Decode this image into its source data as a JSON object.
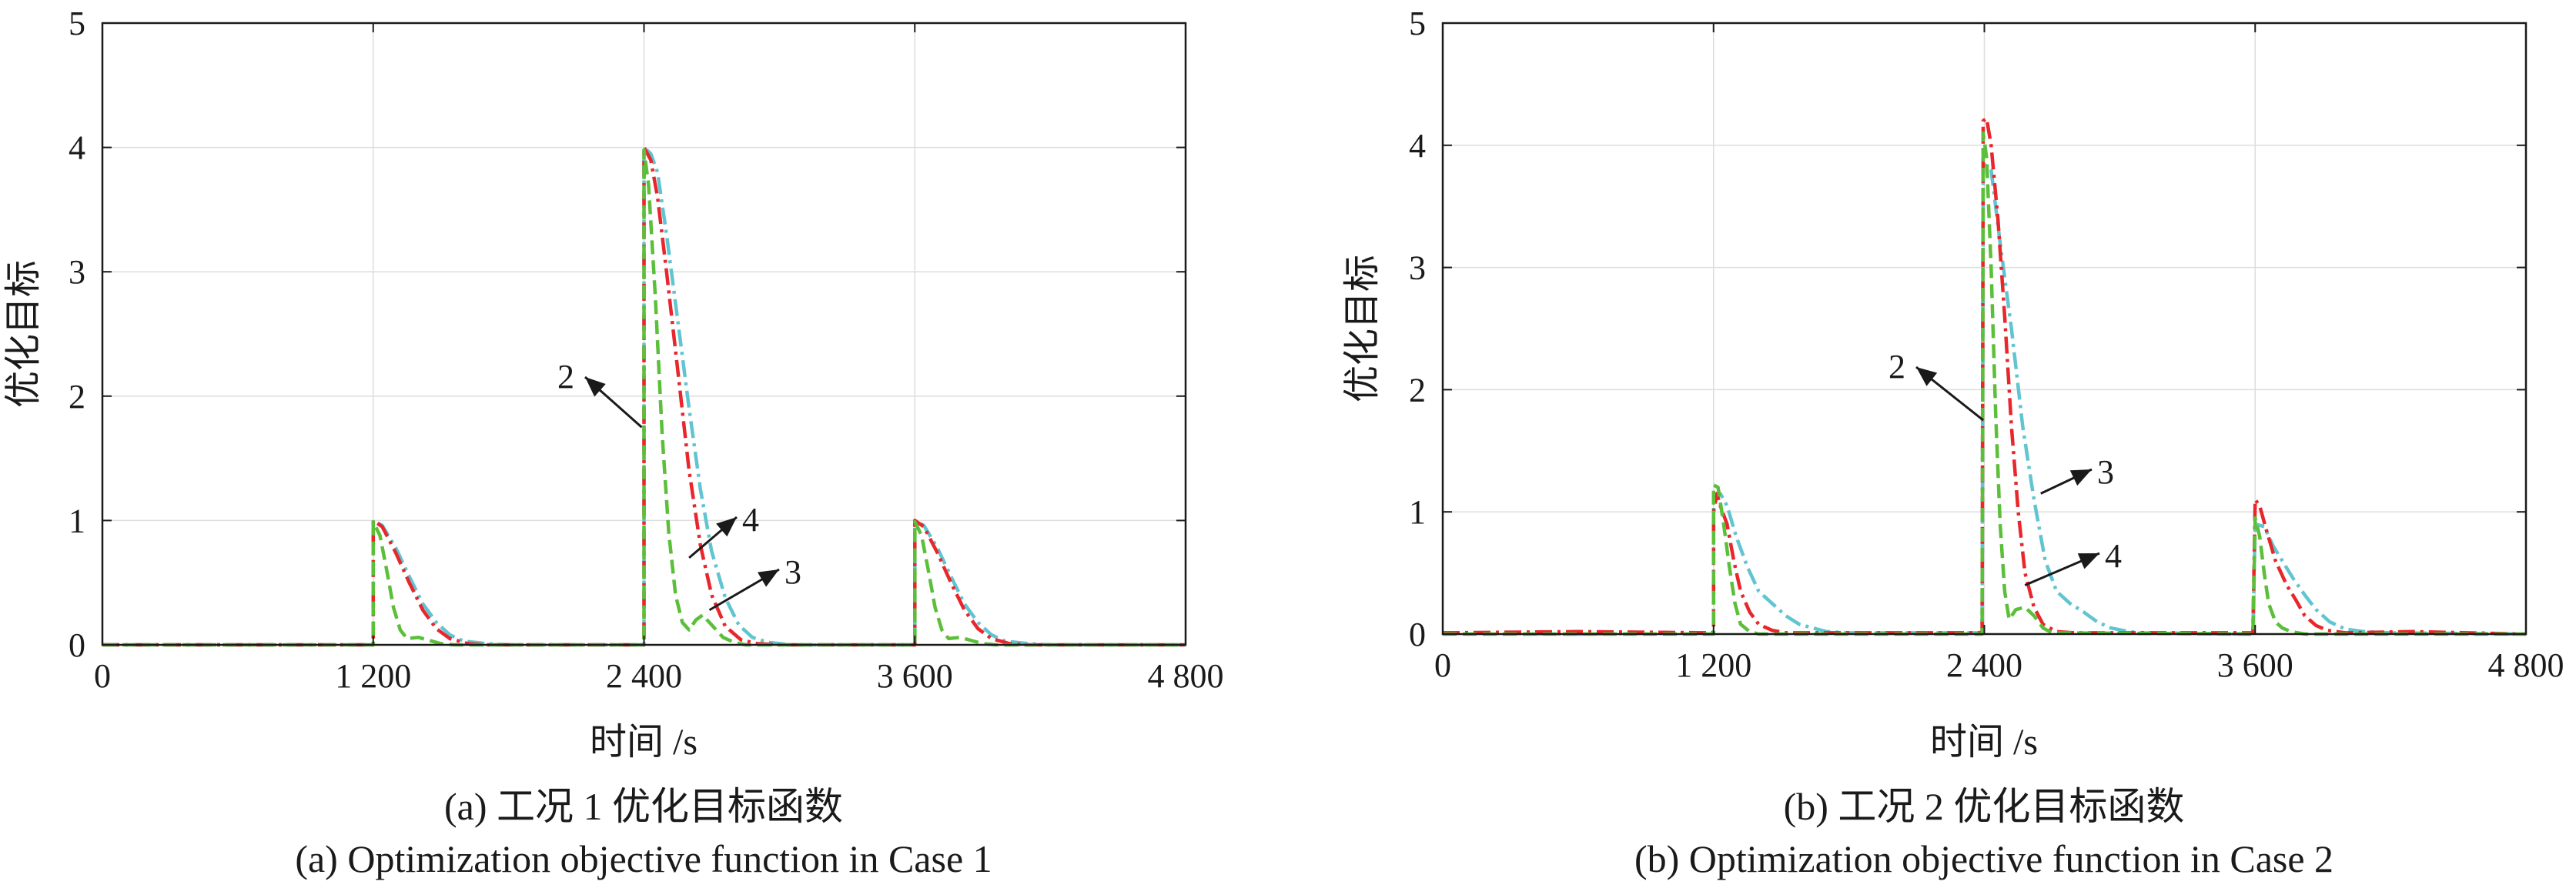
{
  "chart_data": [
    {
      "type": "line",
      "caption_cn": "(a) 工况 1 优化目标函数",
      "caption_en": "(a) Optimization objective function in Case 1",
      "xlabel": "时间 /s",
      "ylabel": "优化目标",
      "xlim": [
        0,
        4800
      ],
      "ylim": [
        0,
        5
      ],
      "xticks": [
        0,
        1200,
        2400,
        3600,
        4800
      ],
      "xtick_labels": [
        "0",
        "1 200",
        "2 400",
        "3 600",
        "4 800"
      ],
      "yticks": [
        0,
        1,
        2,
        3,
        4,
        5
      ],
      "ytick_labels": [
        "0",
        "1",
        "2",
        "3",
        "4",
        "5"
      ],
      "grid": true,
      "annotations": [
        {
          "text": "2",
          "target": [
            2390,
            1.75
          ]
        },
        {
          "text": "4",
          "target": [
            2600,
            0.7
          ]
        },
        {
          "text": "3",
          "target": [
            2690,
            0.28
          ]
        }
      ],
      "series": [
        {
          "color": "#61c4d1",
          "dash": "22,7,4,7",
          "points": [
            [
              0,
              0
            ],
            [
              1200,
              0
            ],
            [
              1200,
              1.0
            ],
            [
              1240,
              0.96
            ],
            [
              1300,
              0.78
            ],
            [
              1360,
              0.55
            ],
            [
              1420,
              0.33
            ],
            [
              1480,
              0.18
            ],
            [
              1540,
              0.08
            ],
            [
              1600,
              0.03
            ],
            [
              1700,
              0.01
            ],
            [
              1800,
              0
            ],
            [
              2400,
              0
            ],
            [
              2400,
              4.0
            ],
            [
              2430,
              3.95
            ],
            [
              2460,
              3.8
            ],
            [
              2500,
              3.3
            ],
            [
              2550,
              2.6
            ],
            [
              2600,
              1.9
            ],
            [
              2650,
              1.25
            ],
            [
              2700,
              0.75
            ],
            [
              2760,
              0.38
            ],
            [
              2820,
              0.16
            ],
            [
              2880,
              0.06
            ],
            [
              2950,
              0.02
            ],
            [
              3050,
              0
            ],
            [
              3600,
              0
            ],
            [
              3600,
              1.0
            ],
            [
              3640,
              0.96
            ],
            [
              3700,
              0.78
            ],
            [
              3760,
              0.55
            ],
            [
              3820,
              0.33
            ],
            [
              3880,
              0.18
            ],
            [
              3940,
              0.08
            ],
            [
              4000,
              0.03
            ],
            [
              4100,
              0.01
            ],
            [
              4200,
              0
            ],
            [
              4800,
              0
            ]
          ]
        },
        {
          "color": "#e8262b",
          "dash": "22,7,4,7",
          "points": [
            [
              0,
              0
            ],
            [
              1200,
              0
            ],
            [
              1200,
              1.0
            ],
            [
              1240,
              0.95
            ],
            [
              1300,
              0.74
            ],
            [
              1360,
              0.5
            ],
            [
              1420,
              0.28
            ],
            [
              1480,
              0.13
            ],
            [
              1540,
              0.05
            ],
            [
              1620,
              0.01
            ],
            [
              1700,
              0
            ],
            [
              2400,
              0
            ],
            [
              2400,
              4.0
            ],
            [
              2430,
              3.9
            ],
            [
              2460,
              3.6
            ],
            [
              2500,
              3.0
            ],
            [
              2550,
              2.2
            ],
            [
              2600,
              1.4
            ],
            [
              2650,
              0.8
            ],
            [
              2700,
              0.4
            ],
            [
              2760,
              0.15
            ],
            [
              2830,
              0.04
            ],
            [
              2900,
              0.01
            ],
            [
              3000,
              0
            ],
            [
              3600,
              0
            ],
            [
              3600,
              1.0
            ],
            [
              3640,
              0.95
            ],
            [
              3700,
              0.74
            ],
            [
              3760,
              0.5
            ],
            [
              3820,
              0.28
            ],
            [
              3880,
              0.13
            ],
            [
              3940,
              0.05
            ],
            [
              4020,
              0.01
            ],
            [
              4100,
              0
            ],
            [
              4800,
              0
            ]
          ]
        },
        {
          "color": "#5bbf3a",
          "dash": "18,8",
          "points": [
            [
              0,
              0
            ],
            [
              1200,
              0
            ],
            [
              1200,
              0.99
            ],
            [
              1230,
              0.88
            ],
            [
              1260,
              0.6
            ],
            [
              1290,
              0.3
            ],
            [
              1320,
              0.12
            ],
            [
              1350,
              0.05
            ],
            [
              1400,
              0.06
            ],
            [
              1440,
              0.04
            ],
            [
              1500,
              0.01
            ],
            [
              1560,
              0
            ],
            [
              2400,
              0
            ],
            [
              2400,
              3.98
            ],
            [
              2420,
              3.7
            ],
            [
              2450,
              2.8
            ],
            [
              2480,
              1.7
            ],
            [
              2510,
              0.9
            ],
            [
              2540,
              0.4
            ],
            [
              2570,
              0.18
            ],
            [
              2600,
              0.12
            ],
            [
              2630,
              0.2
            ],
            [
              2660,
              0.24
            ],
            [
              2700,
              0.16
            ],
            [
              2750,
              0.06
            ],
            [
              2800,
              0.02
            ],
            [
              2850,
              0
            ],
            [
              3600,
              0
            ],
            [
              3600,
              0.99
            ],
            [
              3630,
              0.88
            ],
            [
              3660,
              0.6
            ],
            [
              3690,
              0.3
            ],
            [
              3720,
              0.12
            ],
            [
              3750,
              0.05
            ],
            [
              3800,
              0.06
            ],
            [
              3840,
              0.04
            ],
            [
              3900,
              0.01
            ],
            [
              3960,
              0
            ],
            [
              4800,
              0
            ]
          ]
        }
      ]
    },
    {
      "type": "line",
      "caption_cn": "(b) 工况 2 优化目标函数",
      "caption_en": "(b) Optimization objective function in Case 2",
      "xlabel": "时间 /s",
      "ylabel": "优化目标",
      "xlim": [
        0,
        4800
      ],
      "ylim": [
        0,
        5
      ],
      "xticks": [
        0,
        1200,
        2400,
        3600,
        4800
      ],
      "xtick_labels": [
        "0",
        "1 200",
        "2 400",
        "3 600",
        "4 800"
      ],
      "yticks": [
        0,
        1,
        2,
        3,
        4,
        5
      ],
      "ytick_labels": [
        "0",
        "1",
        "2",
        "3",
        "4",
        "5"
      ],
      "grid": true,
      "annotations": [
        {
          "text": "2",
          "target": [
            2395,
            1.75
          ]
        },
        {
          "text": "3",
          "target": [
            2650,
            1.15
          ]
        },
        {
          "text": "4",
          "target": [
            2580,
            0.4
          ]
        }
      ],
      "series": [
        {
          "color": "#61c4d1",
          "dash": "22,7,4,7",
          "points": [
            [
              0,
              0.01
            ],
            [
              600,
              0
            ],
            [
              1190,
              0.01
            ],
            [
              1200,
              0.02
            ],
            [
              1200,
              1.1
            ],
            [
              1230,
              1.15
            ],
            [
              1260,
              1.05
            ],
            [
              1300,
              0.8
            ],
            [
              1350,
              0.55
            ],
            [
              1400,
              0.35
            ],
            [
              1460,
              0.25
            ],
            [
              1520,
              0.15
            ],
            [
              1580,
              0.08
            ],
            [
              1640,
              0.05
            ],
            [
              1700,
              0.02
            ],
            [
              1800,
              0.01
            ],
            [
              2380,
              0.01
            ],
            [
              2390,
              0.02
            ],
            [
              2395,
              3.85
            ],
            [
              2430,
              3.8
            ],
            [
              2470,
              3.2
            ],
            [
              2520,
              2.5
            ],
            [
              2570,
              1.7
            ],
            [
              2620,
              1.1
            ],
            [
              2670,
              0.6
            ],
            [
              2720,
              0.35
            ],
            [
              2780,
              0.25
            ],
            [
              2840,
              0.18
            ],
            [
              2900,
              0.1
            ],
            [
              2960,
              0.05
            ],
            [
              3040,
              0.02
            ],
            [
              3100,
              0.01
            ],
            [
              3590,
              0
            ],
            [
              3600,
              0.9
            ],
            [
              3640,
              0.88
            ],
            [
              3680,
              0.72
            ],
            [
              3720,
              0.6
            ],
            [
              3770,
              0.45
            ],
            [
              3820,
              0.32
            ],
            [
              3870,
              0.2
            ],
            [
              3930,
              0.1
            ],
            [
              4000,
              0.04
            ],
            [
              4080,
              0.02
            ],
            [
              4200,
              0.01
            ],
            [
              4800,
              0
            ]
          ]
        },
        {
          "color": "#e8262b",
          "dash": "22,7,4,7",
          "points": [
            [
              0,
              0.01
            ],
            [
              600,
              0.02
            ],
            [
              1190,
              0.01
            ],
            [
              1200,
              0.01
            ],
            [
              1200,
              1.0
            ],
            [
              1215,
              1.15
            ],
            [
              1230,
              1.05
            ],
            [
              1260,
              0.9
            ],
            [
              1290,
              0.6
            ],
            [
              1320,
              0.35
            ],
            [
              1360,
              0.18
            ],
            [
              1400,
              0.08
            ],
            [
              1460,
              0.03
            ],
            [
              1520,
              0.01
            ],
            [
              2380,
              0.01
            ],
            [
              2390,
              0.02
            ],
            [
              2395,
              4.2
            ],
            [
              2410,
              4.22
            ],
            [
              2430,
              4.0
            ],
            [
              2460,
              3.4
            ],
            [
              2490,
              2.6
            ],
            [
              2520,
              1.7
            ],
            [
              2550,
              1.0
            ],
            [
              2580,
              0.5
            ],
            [
              2620,
              0.22
            ],
            [
              2660,
              0.08
            ],
            [
              2720,
              0.02
            ],
            [
              2800,
              0.01
            ],
            [
              3590,
              0.01
            ],
            [
              3600,
              1.1
            ],
            [
              3620,
              1.05
            ],
            [
              3650,
              0.85
            ],
            [
              3690,
              0.6
            ],
            [
              3740,
              0.4
            ],
            [
              3780,
              0.28
            ],
            [
              3820,
              0.15
            ],
            [
              3870,
              0.07
            ],
            [
              3920,
              0.03
            ],
            [
              4000,
              0.01
            ],
            [
              4300,
              0.02
            ],
            [
              4800,
              0
            ]
          ]
        },
        {
          "color": "#5bbf3a",
          "dash": "18,8",
          "points": [
            [
              0,
              0
            ],
            [
              1200,
              0
            ],
            [
              1200,
              1.22
            ],
            [
              1220,
              1.2
            ],
            [
              1245,
              0.9
            ],
            [
              1270,
              0.55
            ],
            [
              1295,
              0.25
            ],
            [
              1320,
              0.08
            ],
            [
              1360,
              0.02
            ],
            [
              1400,
              0
            ],
            [
              2390,
              0
            ],
            [
              2395,
              4.1
            ],
            [
              2410,
              3.9
            ],
            [
              2430,
              3.0
            ],
            [
              2450,
              1.8
            ],
            [
              2470,
              0.9
            ],
            [
              2490,
              0.35
            ],
            [
              2510,
              0.12
            ],
            [
              2540,
              0.2
            ],
            [
              2580,
              0.22
            ],
            [
              2620,
              0.15
            ],
            [
              2660,
              0.05
            ],
            [
              2700,
              0.01
            ],
            [
              3590,
              0
            ],
            [
              3600,
              0.95
            ],
            [
              3620,
              0.8
            ],
            [
              3640,
              0.5
            ],
            [
              3660,
              0.25
            ],
            [
              3690,
              0.1
            ],
            [
              3720,
              0.05
            ],
            [
              3760,
              0.02
            ],
            [
              3820,
              0
            ],
            [
              4800,
              0
            ]
          ]
        }
      ]
    }
  ]
}
